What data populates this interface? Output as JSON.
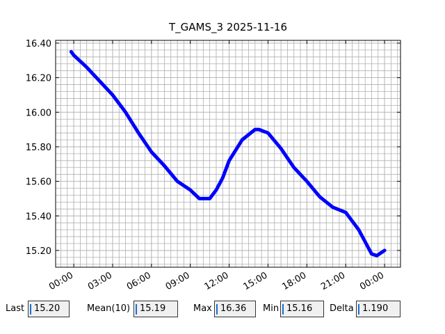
{
  "chart_data": {
    "type": "line",
    "title": "T_GAMS_3 2025-11-16",
    "x": [
      -0.2,
      0,
      1,
      2,
      3,
      4,
      5,
      6,
      7,
      8,
      9,
      9.7,
      10,
      10.5,
      11,
      11.5,
      12,
      13,
      14,
      14.3,
      15,
      16,
      17,
      18,
      19,
      20,
      21,
      22,
      22.5,
      23,
      23.4,
      24
    ],
    "series": [
      {
        "name": "T_GAMS_3",
        "color": "#0000ff",
        "values": [
          16.35,
          16.33,
          16.26,
          16.18,
          16.1,
          16.0,
          15.88,
          15.77,
          15.69,
          15.6,
          15.55,
          15.5,
          15.5,
          15.5,
          15.55,
          15.62,
          15.72,
          15.84,
          15.9,
          15.9,
          15.88,
          15.79,
          15.68,
          15.6,
          15.51,
          15.45,
          15.42,
          15.32,
          15.25,
          15.18,
          15.17,
          15.2
        ]
      }
    ],
    "xlim": [
      -1.4,
      25.23
    ],
    "xticks": [
      {
        "value": 0,
        "label": "00:00"
      },
      {
        "value": 3,
        "label": "03:00"
      },
      {
        "value": 6,
        "label": "06:00"
      },
      {
        "value": 9,
        "label": "09:00"
      },
      {
        "value": 12,
        "label": "12:00"
      },
      {
        "value": 15,
        "label": "15:00"
      },
      {
        "value": 18,
        "label": "18:00"
      },
      {
        "value": 21,
        "label": "21:00"
      },
      {
        "value": 24,
        "label": "00:00"
      }
    ],
    "ylim": [
      15.103,
      16.416
    ],
    "yticks": [
      {
        "value": 15.2,
        "label": "15.20"
      },
      {
        "value": 15.4,
        "label": "15.40"
      },
      {
        "value": 15.6,
        "label": "15.60"
      },
      {
        "value": 15.8,
        "label": "15.80"
      },
      {
        "value": 16.0,
        "label": "16.00"
      },
      {
        "value": 16.2,
        "label": "16.20"
      },
      {
        "value": 16.4,
        "label": "16.40"
      }
    ],
    "grid": true,
    "minor_grid": true
  },
  "stats": [
    {
      "label": "Last",
      "value": "15.20"
    },
    {
      "label": "Mean(10)",
      "value": "15.19"
    },
    {
      "label": "Max",
      "value": "16.36"
    },
    {
      "label": "Min",
      "value": "15.16"
    },
    {
      "label": "Delta",
      "value": "1.190"
    }
  ]
}
